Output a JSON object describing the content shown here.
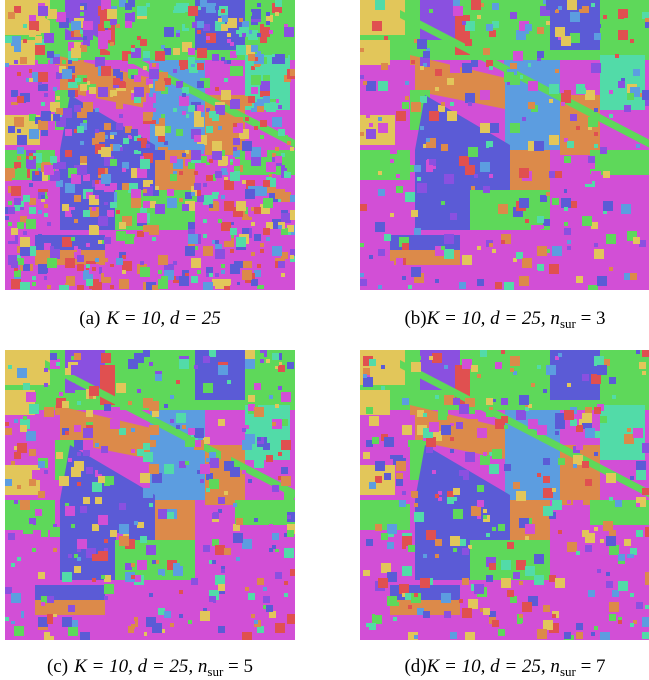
{
  "panels": [
    {
      "caption": {
        "label": "(a)",
        "math": "K = 10, d = 25"
      }
    },
    {
      "caption": {
        "label": "(b)",
        "math": "K = 10, d = 25, n",
        "sub": "sur",
        "tail": " = 3"
      }
    },
    {
      "caption": {
        "label": "(c)",
        "math": "K = 10, d = 25, n",
        "sub": "sur",
        "tail": " = 5"
      }
    },
    {
      "caption": {
        "label": "(d)",
        "math": "K = 10, d = 25, n",
        "sub": "sur",
        "tail": " = 7"
      }
    }
  ]
}
